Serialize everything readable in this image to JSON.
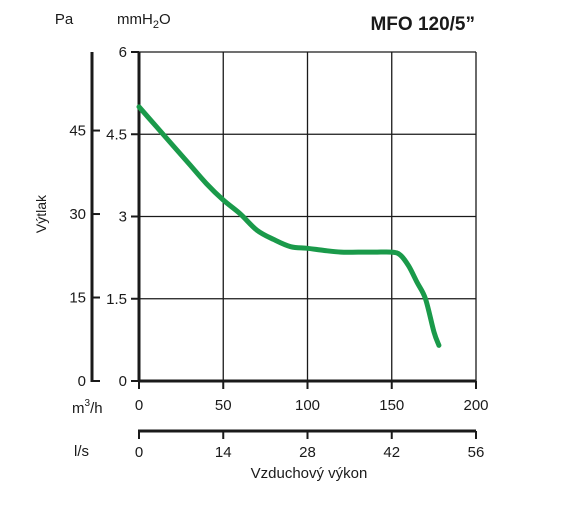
{
  "chart_data": {
    "type": "line",
    "title": "MFO 120/5”",
    "ylabel": "Výtlak",
    "xlabel": "Vzduchový výkon",
    "units": {
      "pressure_pa": "Pa",
      "pressure_mmh2o_base": "mmH",
      "pressure_mmh2o_sub": "2",
      "pressure_mmh2o_tail": "O",
      "flow_m3h_base": "m",
      "flow_m3h_sup": "3",
      "flow_m3h_tail": "/h",
      "flow_ls": "l/s"
    },
    "x_unit": "m3/h",
    "y_unit": "mmH2O",
    "xlim": [
      0,
      200
    ],
    "ylim": [
      0,
      6
    ],
    "grid": true,
    "x_ticks_m3h": [
      "0",
      "50",
      "100",
      "150",
      "200"
    ],
    "x_ticks_ls": [
      "0",
      "14",
      "28",
      "42",
      "56"
    ],
    "y_ticks_mmh2o": [
      "0",
      "1.5",
      "3",
      "4.5",
      "6"
    ],
    "y_ticks_pa": [
      "0",
      "15",
      "30",
      "45"
    ],
    "series": [
      {
        "color": "#1a9a4a",
        "x": [
          0,
          10,
          20,
          30,
          40,
          50,
          60,
          70,
          80,
          90,
          100,
          110,
          120,
          130,
          140,
          150,
          155,
          160,
          165,
          170,
          175,
          178
        ],
        "y": [
          5.0,
          4.65,
          4.3,
          3.95,
          3.6,
          3.3,
          3.05,
          2.75,
          2.58,
          2.45,
          2.42,
          2.38,
          2.35,
          2.35,
          2.35,
          2.35,
          2.3,
          2.1,
          1.8,
          1.5,
          0.9,
          0.65
        ]
      }
    ]
  }
}
